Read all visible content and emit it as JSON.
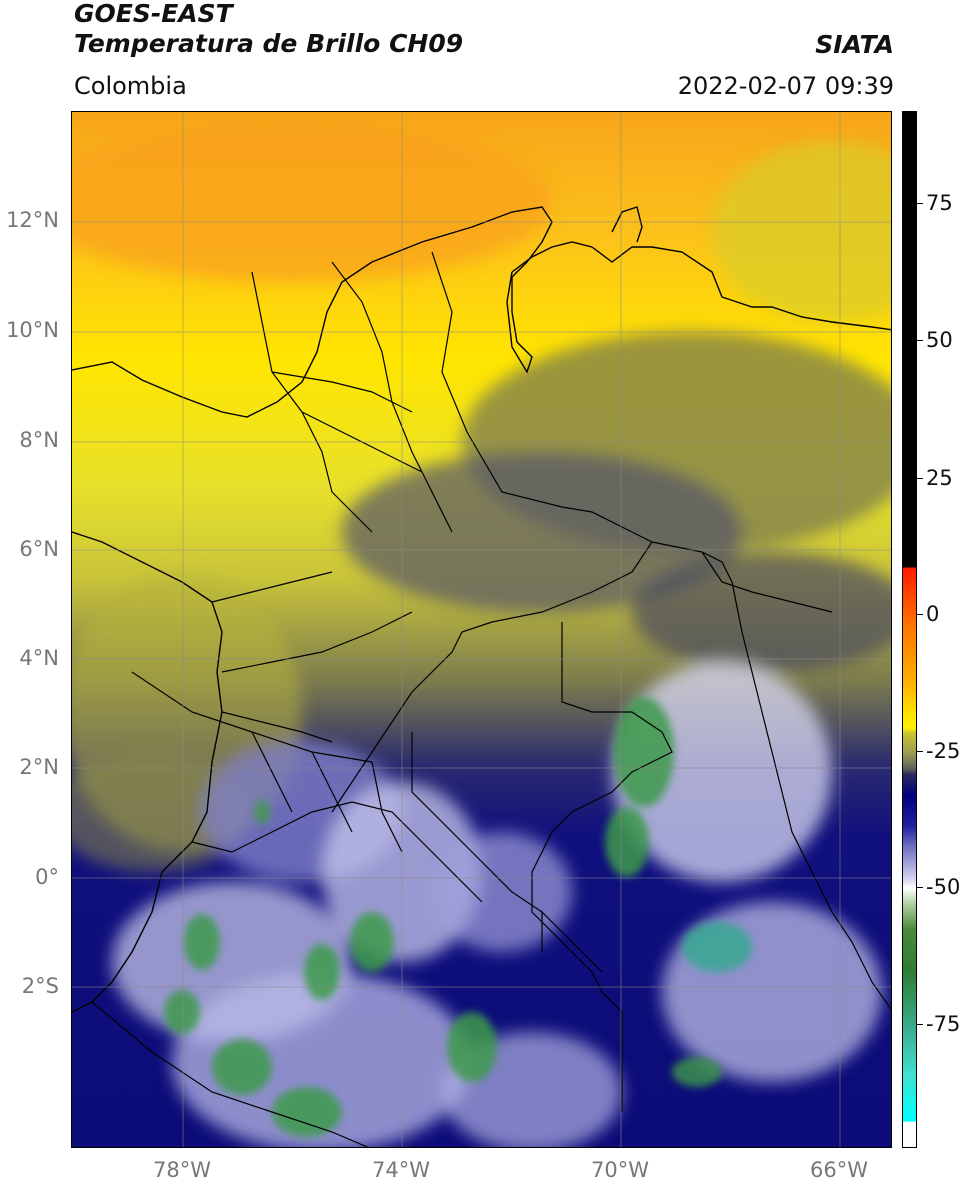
{
  "header": {
    "line1": "GOES-EAST",
    "line2": "Temperatura de Brillo CH09",
    "region": "Colombia",
    "brand": "SIATA",
    "timestamp": "2022-02-07 09:39"
  },
  "map": {
    "latitude_labels": [
      "12°N",
      "10°N",
      "8°N",
      "6°N",
      "4°N",
      "2°N",
      "0°",
      "2°S"
    ],
    "longitude_labels": [
      "78°W",
      "74°W",
      "70°W",
      "66°W"
    ],
    "grid": true,
    "extent": {
      "lon_min": -80,
      "lon_max": -65,
      "lat_min": -5,
      "lat_max": 14
    }
  },
  "colorbar": {
    "labels": [
      "75",
      "50",
      "25",
      "0",
      "-25",
      "-50",
      "-75"
    ],
    "range": [
      -95,
      90
    ],
    "colors": {
      "black_top": "#000000",
      "red": "#ff1a00",
      "orange": "#ff9a00",
      "yellow": "#fff200",
      "olive": "#9a9a55",
      "gray": "#5c5c5c",
      "navy": "#000080",
      "white": "#ffffff",
      "green": "#2e7d32",
      "cyan": "#00ffff"
    }
  }
}
